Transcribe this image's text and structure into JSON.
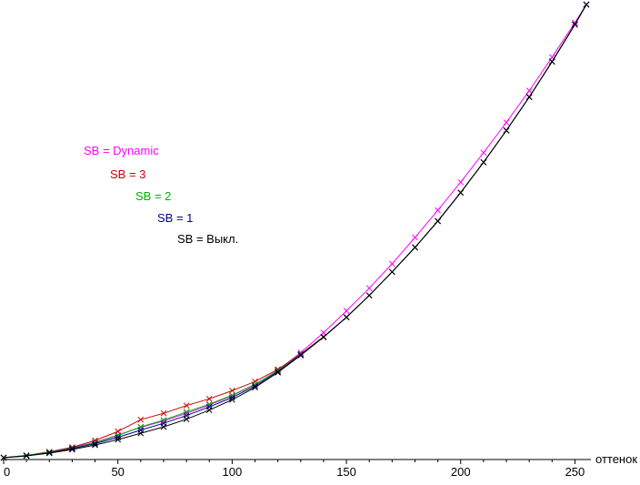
{
  "chart_data": {
    "type": "line",
    "title": "",
    "xlabel": "оттенок",
    "ylabel": "",
    "xlim": [
      0,
      255
    ],
    "ylim": [
      0,
      1
    ],
    "x_ticks": [
      0,
      50,
      100,
      150,
      200,
      250
    ],
    "x_minor_step": 10,
    "grid": false,
    "marker": "x",
    "legend_position": "upper-left",
    "x": [
      0,
      10,
      20,
      30,
      40,
      50,
      60,
      70,
      80,
      90,
      100,
      110,
      120,
      130,
      140,
      150,
      160,
      170,
      180,
      190,
      200,
      210,
      220,
      230,
      240,
      250,
      255
    ],
    "series": [
      {
        "id": "sb-dynamic",
        "name": "SB = Dynamic",
        "color": "#ff00ff",
        "values": [
          0,
          0.005,
          0.012,
          0.022,
          0.034,
          0.05,
          0.067,
          0.081,
          0.098,
          0.116,
          0.137,
          0.161,
          0.193,
          0.232,
          0.276,
          0.324,
          0.374,
          0.428,
          0.486,
          0.546,
          0.608,
          0.673,
          0.74,
          0.81,
          0.884,
          0.96,
          1.0
        ]
      },
      {
        "id": "sb-3",
        "name": "SB = 3",
        "color": "#cc0000",
        "values": [
          0,
          0.005,
          0.013,
          0.023,
          0.038,
          0.058,
          0.084,
          0.098,
          0.115,
          0.13,
          0.148,
          0.168,
          0.195,
          0.229,
          0.267,
          0.31,
          0.358,
          0.41,
          0.464,
          0.522,
          0.585,
          0.652,
          0.722,
          0.796,
          0.874,
          0.956,
          1.0
        ]
      },
      {
        "id": "sb-2",
        "name": "SB = 2",
        "color": "#00b000",
        "values": [
          0,
          0.005,
          0.012,
          0.021,
          0.033,
          0.049,
          0.068,
          0.083,
          0.101,
          0.118,
          0.138,
          0.162,
          0.192,
          0.228,
          0.266,
          0.31,
          0.358,
          0.41,
          0.464,
          0.522,
          0.585,
          0.652,
          0.722,
          0.796,
          0.874,
          0.956,
          1.0
        ]
      },
      {
        "id": "sb-1",
        "name": "SB = 1",
        "color": "#000090",
        "values": [
          0,
          0.004,
          0.011,
          0.02,
          0.031,
          0.045,
          0.061,
          0.076,
          0.093,
          0.112,
          0.133,
          0.158,
          0.19,
          0.227,
          0.266,
          0.31,
          0.358,
          0.41,
          0.464,
          0.522,
          0.585,
          0.652,
          0.722,
          0.796,
          0.874,
          0.956,
          1.0
        ]
      },
      {
        "id": "sb-off",
        "name": "SB = Выкл.",
        "color": "#000000",
        "values": [
          0,
          0.004,
          0.01,
          0.018,
          0.028,
          0.04,
          0.054,
          0.068,
          0.085,
          0.105,
          0.128,
          0.155,
          0.188,
          0.226,
          0.266,
          0.31,
          0.358,
          0.41,
          0.464,
          0.522,
          0.585,
          0.652,
          0.722,
          0.796,
          0.874,
          0.956,
          1.0
        ]
      }
    ]
  }
}
